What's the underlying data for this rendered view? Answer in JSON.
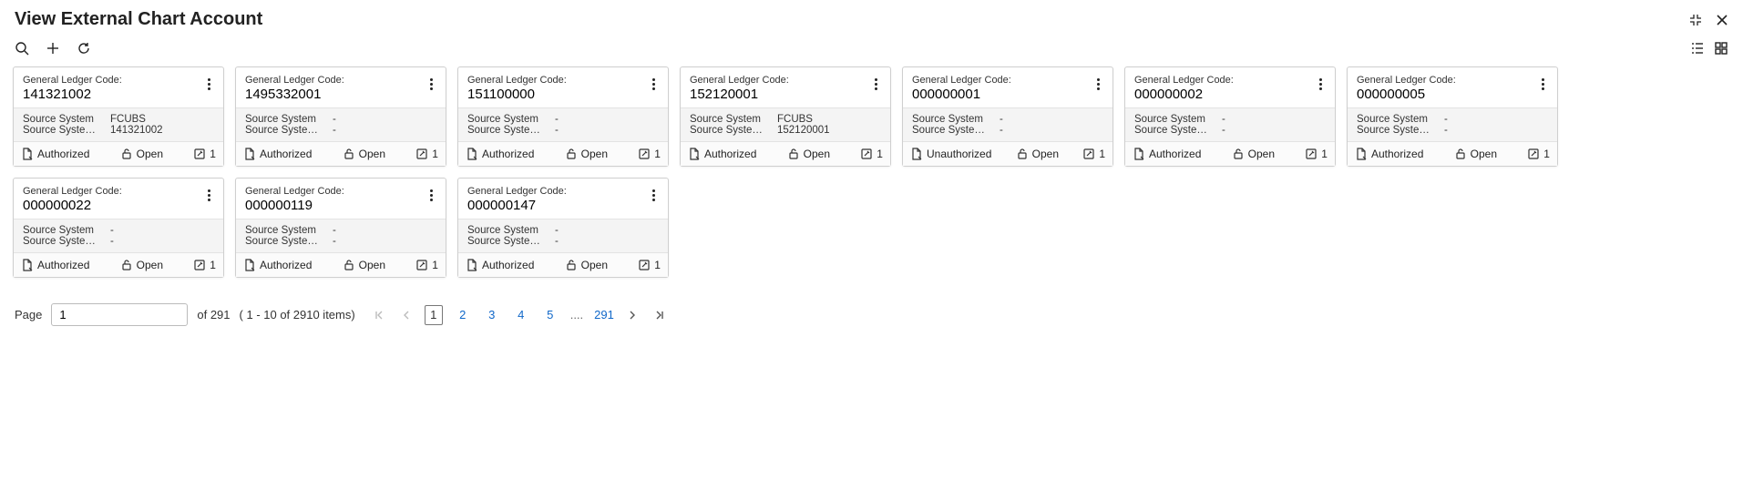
{
  "header": {
    "title": "View External Chart Account"
  },
  "labels": {
    "gl": "General Ledger Code:",
    "sourceSystem": "Source System",
    "sourceSyste": "Source Syste…",
    "authorized": "Authorized",
    "unauthorized": "Unauthorized",
    "open": "Open",
    "page": "Page"
  },
  "cards": [
    {
      "code": "141321002",
      "ss": "FCUBS",
      "ssn": "141321002",
      "auth": "Authorized",
      "state": "Open",
      "count": "1"
    },
    {
      "code": "1495332001",
      "ss": "-",
      "ssn": "-",
      "auth": "Authorized",
      "state": "Open",
      "count": "1"
    },
    {
      "code": "151100000",
      "ss": "-",
      "ssn": "-",
      "auth": "Authorized",
      "state": "Open",
      "count": "1"
    },
    {
      "code": "152120001",
      "ss": "FCUBS",
      "ssn": "152120001",
      "auth": "Authorized",
      "state": "Open",
      "count": "1"
    },
    {
      "code": "000000001",
      "ss": "-",
      "ssn": "-",
      "auth": "Unauthorized",
      "state": "Open",
      "count": "1"
    },
    {
      "code": "000000002",
      "ss": "-",
      "ssn": "-",
      "auth": "Authorized",
      "state": "Open",
      "count": "1"
    },
    {
      "code": "000000005",
      "ss": "-",
      "ssn": "-",
      "auth": "Authorized",
      "state": "Open",
      "count": "1"
    },
    {
      "code": "000000022",
      "ss": "-",
      "ssn": "-",
      "auth": "Authorized",
      "state": "Open",
      "count": "1"
    },
    {
      "code": "000000119",
      "ss": "-",
      "ssn": "-",
      "auth": "Authorized",
      "state": "Open",
      "count": "1"
    },
    {
      "code": "000000147",
      "ss": "-",
      "ssn": "-",
      "auth": "Authorized",
      "state": "Open",
      "count": "1"
    }
  ],
  "pagination": {
    "pageInput": "1",
    "of": "of 291",
    "range": "( 1 - 10 of 2910 items)",
    "pages": [
      "1",
      "2",
      "3",
      "4",
      "5",
      "....",
      "291"
    ],
    "current": "1"
  }
}
